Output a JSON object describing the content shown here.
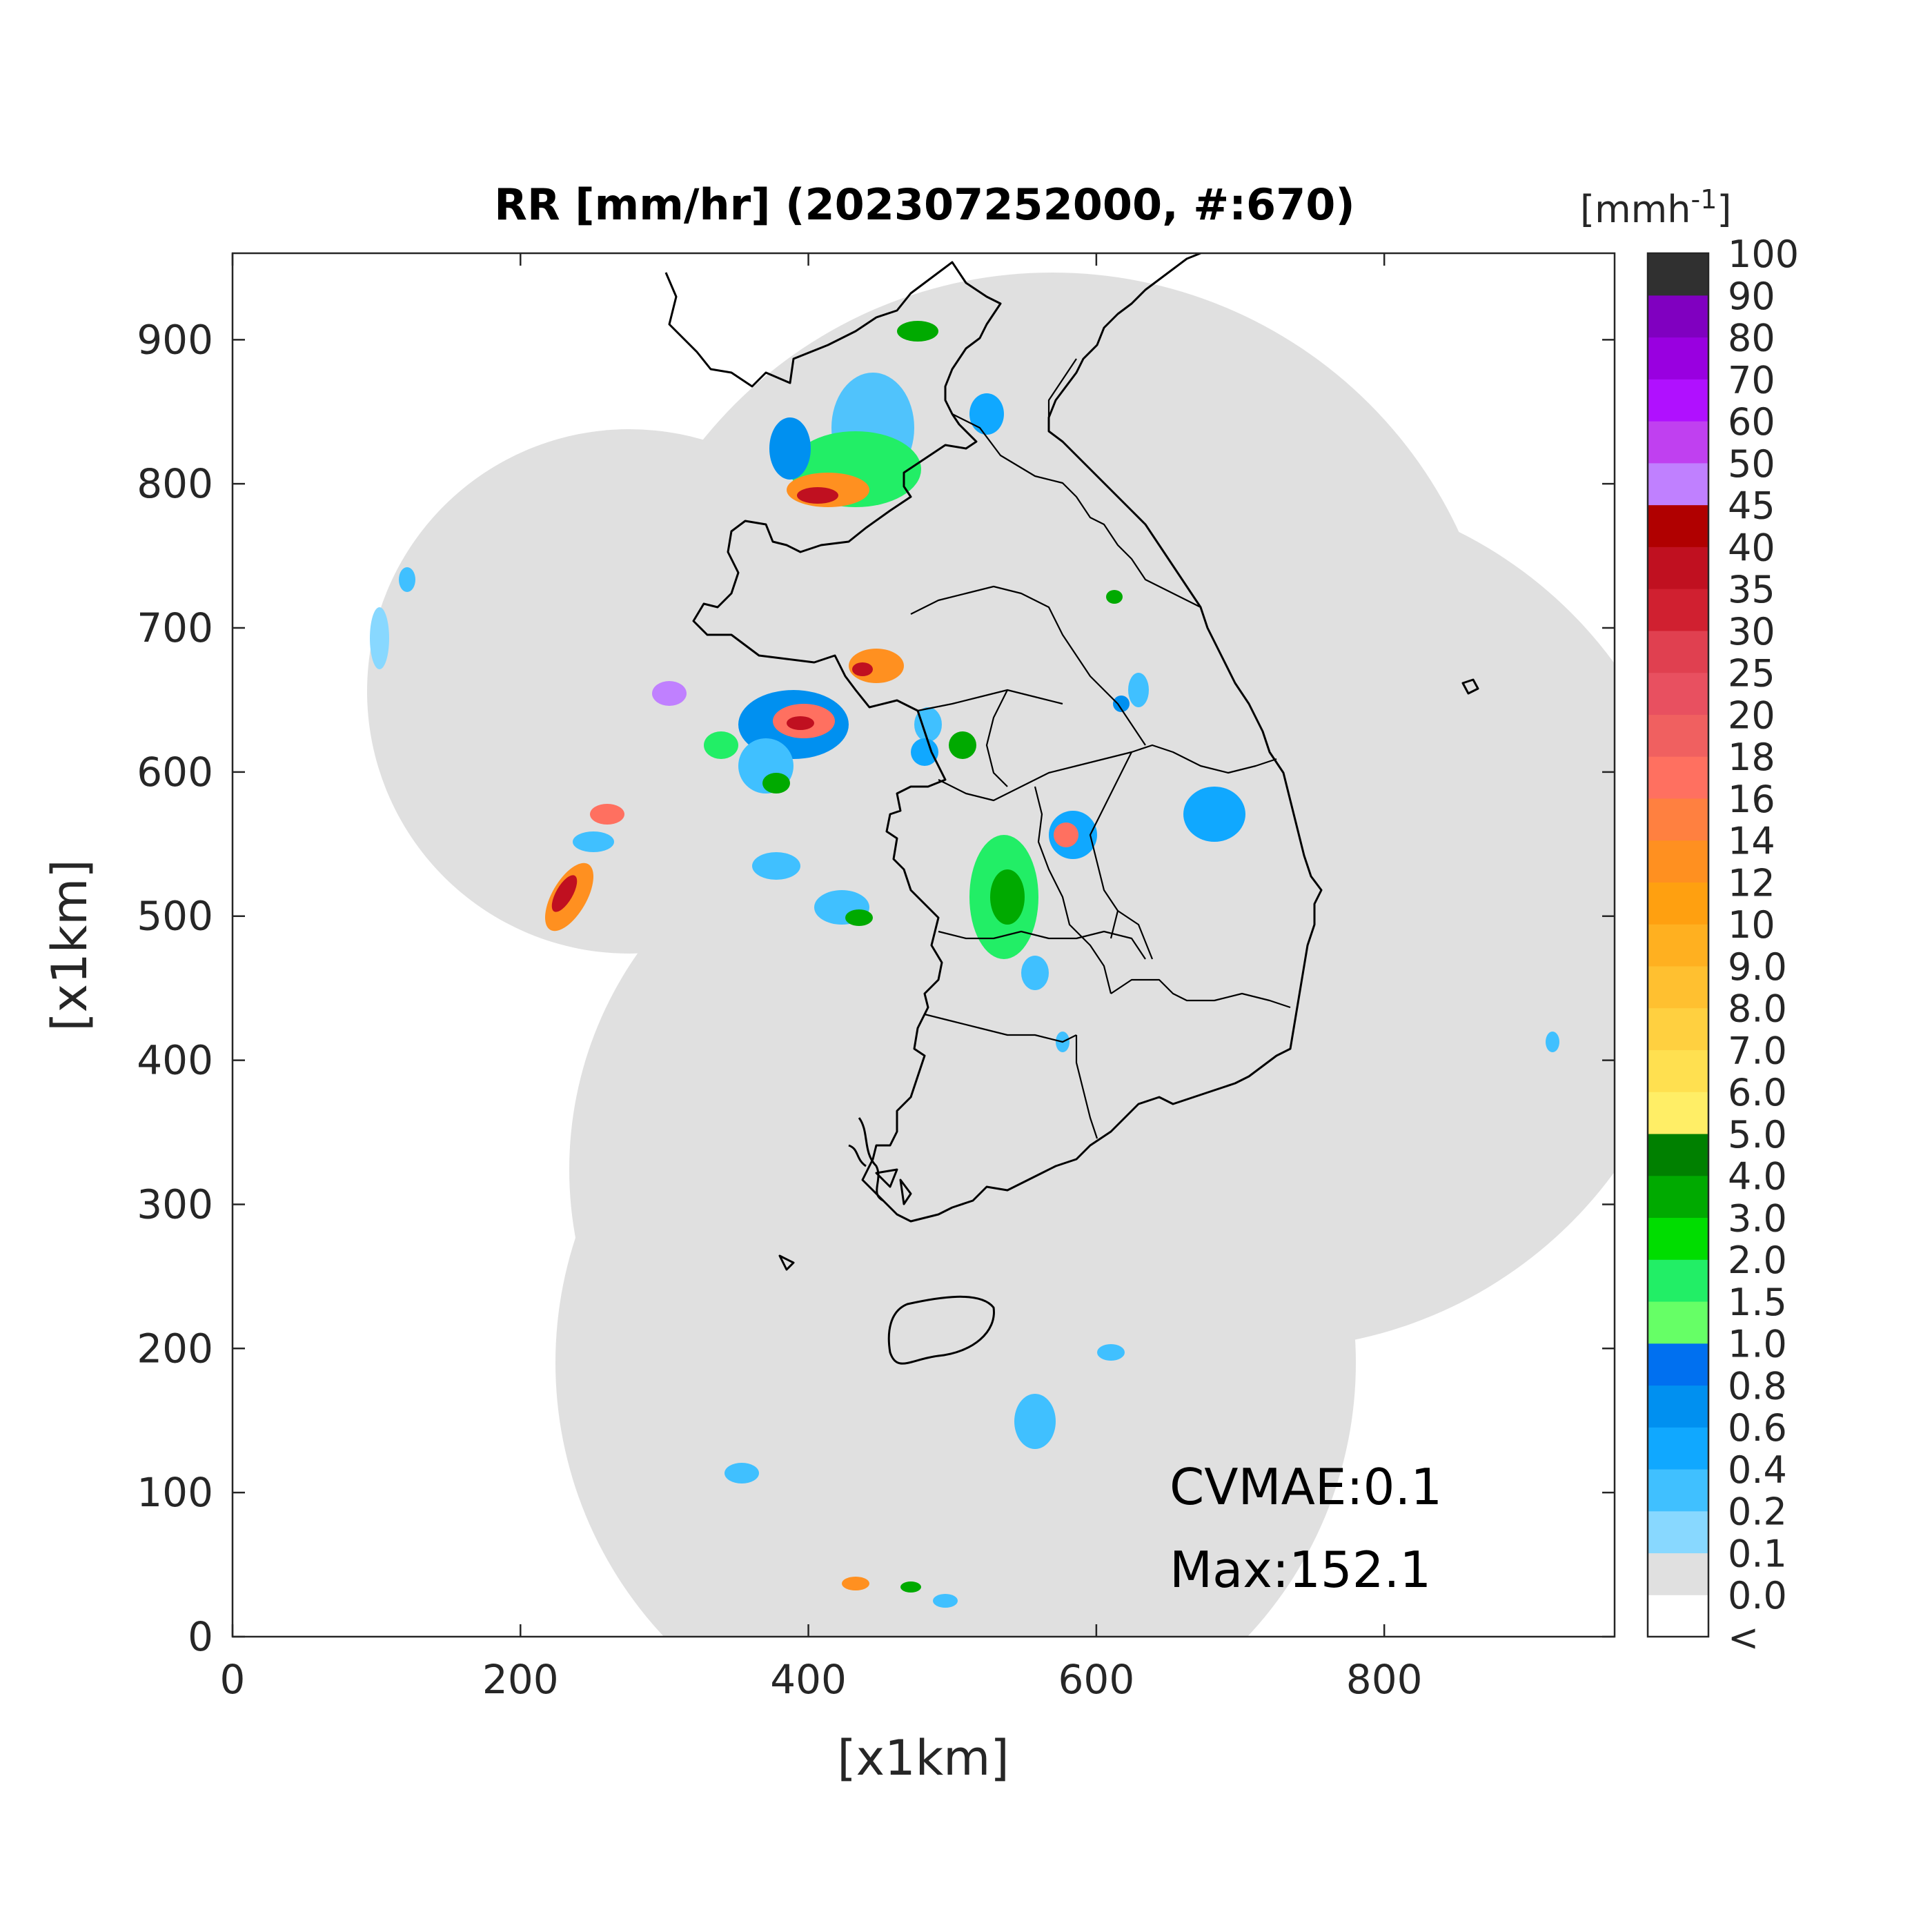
{
  "title": "RR [mm/hr] (202307252000, #:670)",
  "xlabel": "[x1km]",
  "ylabel": "[x1km]",
  "x_ticks": [
    "0",
    "200",
    "400",
    "600",
    "800"
  ],
  "y_ticks": [
    "0",
    "100",
    "200",
    "300",
    "400",
    "500",
    "600",
    "700",
    "800",
    "900"
  ],
  "axis": {
    "xlim": [
      0,
      960
    ],
    "ylim": [
      0,
      960
    ]
  },
  "colorbar": {
    "unit_label": "[mmh",
    "unit_exponent": "-1",
    "unit_close": "]",
    "labels": [
      "<",
      "0.0",
      "0.1",
      "0.2",
      "0.4",
      "0.6",
      "0.8",
      "1.0",
      "1.5",
      "2.0",
      "3.0",
      "4.0",
      "5.0",
      "6.0",
      "7.0",
      "8.0",
      "9.0",
      "10",
      "12",
      "14",
      "16",
      "18",
      "20",
      "25",
      "30",
      "35",
      "40",
      "45",
      "50",
      "60",
      "70",
      "80",
      "90",
      "100"
    ],
    "colors": [
      "#ffffff",
      "#e0e0e0",
      "#88d8ff",
      "#40c0ff",
      "#10a8ff",
      "#0090f0",
      "#0070f0",
      "#66ff66",
      "#22ee66",
      "#00dd00",
      "#00aa00",
      "#008000",
      "#ffee66",
      "#ffe050",
      "#ffd040",
      "#ffc030",
      "#ffb020",
      "#ffa010",
      "#ff9020",
      "#ff8040",
      "#ff7060",
      "#f06060",
      "#e85060",
      "#e04050",
      "#d02030",
      "#c01020",
      "#b00000",
      "#c080ff",
      "#c040f0",
      "#b010ff",
      "#9900e0",
      "#8000c0",
      "#303030"
    ]
  },
  "annotations": {
    "cvmae": "CVMAE:0.1",
    "max": "Max:152.1"
  },
  "colors": {
    "coverage": "#e0e0e0",
    "coastline": "#000000"
  }
}
